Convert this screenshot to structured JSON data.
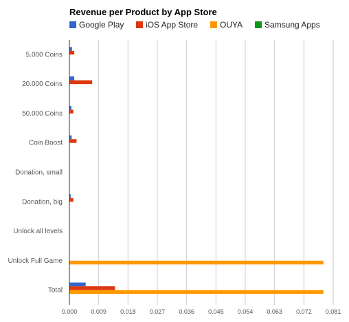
{
  "chart_data": {
    "type": "bar",
    "orientation": "horizontal",
    "title": "Revenue per Product by App Store",
    "xlabel": "",
    "ylabel": "",
    "legend_position": "top",
    "grid": true,
    "xlim": [
      0,
      0.081
    ],
    "x_ticks": [
      "0.000",
      "0.009",
      "0.018",
      "0.027",
      "0.036",
      "0.045",
      "0.054",
      "0.063",
      "0.072",
      "0.081"
    ],
    "categories": [
      "5.000 Coins",
      "20.000 Coins",
      "50.000 Coins",
      "Coin Boost",
      "Donation, small",
      "Donation, big",
      "Unlock all levels",
      "Unlock Full Game",
      "Total"
    ],
    "series": [
      {
        "name": "Google Play",
        "color": "#3366cc",
        "values": [
          0.0008,
          0.0015,
          0.0006,
          0.0007,
          0.0,
          0.0004,
          0.0,
          0.0,
          0.005
        ]
      },
      {
        "name": "iOS App Store",
        "color": "#dc3912",
        "values": [
          0.0015,
          0.007,
          0.0012,
          0.0022,
          0.0001,
          0.0012,
          0.0,
          0.0,
          0.014
        ]
      },
      {
        "name": "OUYA",
        "color": "#ff9900",
        "values": [
          0.0,
          0.0,
          0.0,
          0.0,
          0.0,
          0.0,
          0.0,
          0.078,
          0.078
        ]
      },
      {
        "name": "Samsung Apps",
        "color": "#109618",
        "values": [
          0.0,
          0.0,
          0.0,
          0.0,
          0.0,
          0.0,
          0.0,
          0.0,
          0.0
        ]
      }
    ]
  }
}
